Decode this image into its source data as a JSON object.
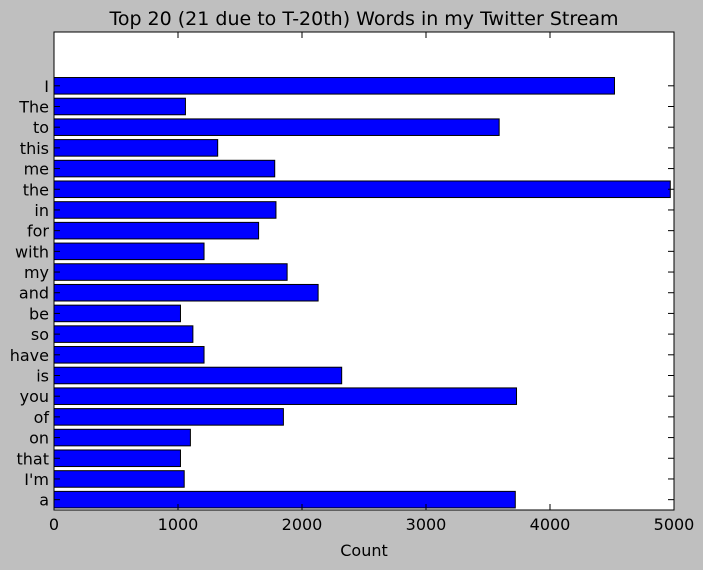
{
  "chart_data": {
    "type": "bar",
    "orientation": "horizontal",
    "title": "Top 20 (21 due to T-20th) Words in my Twitter Stream",
    "xlabel": "Count",
    "ylabel": "",
    "xlim": [
      0,
      5000
    ],
    "xticks": [
      0,
      1000,
      2000,
      3000,
      4000,
      5000
    ],
    "grid": false,
    "legend": "none",
    "colors": {
      "bar_fill": "#0000ff",
      "bar_edge": "#000000",
      "figure_background": "#bfbfbf",
      "axes_background": "#ffffff"
    },
    "categories": [
      "I",
      "The",
      "to",
      "this",
      "me",
      "the",
      "in",
      "for",
      "with",
      "my",
      "and",
      "be",
      "so",
      "have",
      "is",
      "you",
      "of",
      "on",
      "that",
      "I'm",
      "a"
    ],
    "values": [
      4520,
      1060,
      3590,
      1320,
      1780,
      4970,
      1790,
      1650,
      1210,
      1880,
      2130,
      1020,
      1120,
      1210,
      2320,
      3730,
      1850,
      1100,
      1020,
      1050,
      3720
    ]
  }
}
